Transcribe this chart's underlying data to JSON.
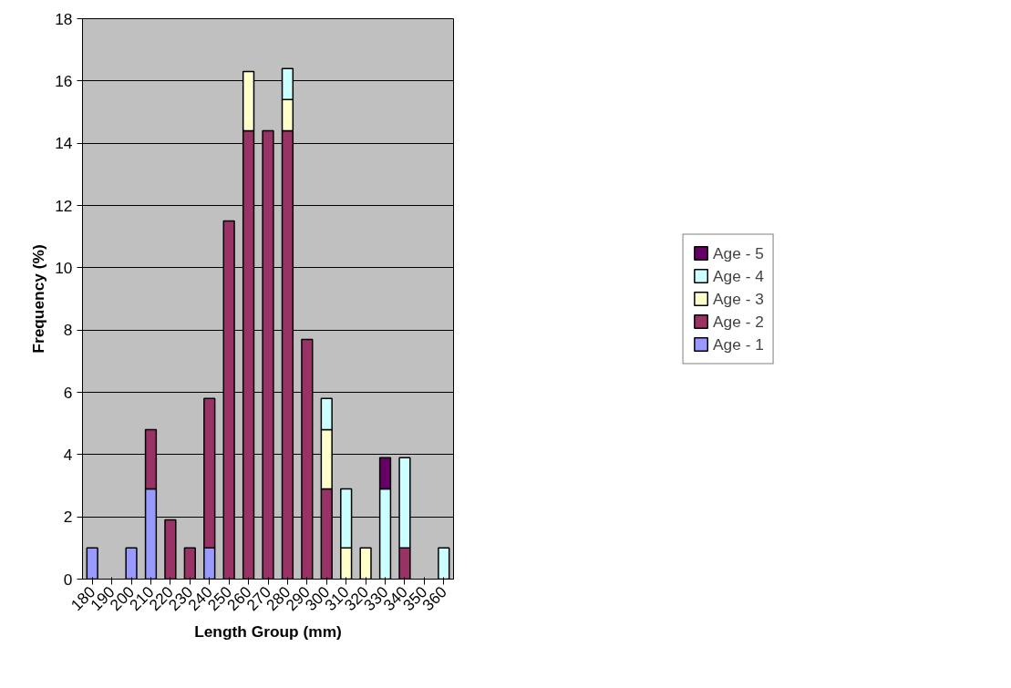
{
  "chart_data": {
    "type": "bar",
    "stacked": true,
    "xlabel": "Length Group (mm)",
    "ylabel": "Frequency (%)",
    "categories": [
      "180",
      "190",
      "200",
      "210",
      "220",
      "230",
      "240",
      "250",
      "260",
      "270",
      "280",
      "290",
      "300",
      "310",
      "320",
      "330",
      "340",
      "350",
      "360"
    ],
    "series": [
      {
        "name": "Age - 1",
        "color": "#9999ff",
        "values": [
          1,
          null,
          1,
          2.9,
          null,
          null,
          1,
          null,
          null,
          null,
          null,
          null,
          null,
          null,
          null,
          null,
          null,
          null,
          null
        ]
      },
      {
        "name": "Age - 2",
        "color": "#993366",
        "values": [
          null,
          null,
          null,
          1.9,
          1.9,
          1,
          4.8,
          11.5,
          14.4,
          14.4,
          14.4,
          7.7,
          2.9,
          null,
          null,
          null,
          1,
          null,
          null
        ]
      },
      {
        "name": "Age - 3",
        "color": "#ffffcc",
        "values": [
          null,
          null,
          null,
          null,
          null,
          null,
          null,
          null,
          1.9,
          null,
          1,
          null,
          1.9,
          1,
          1,
          null,
          null,
          null,
          null
        ]
      },
      {
        "name": "Age - 4",
        "color": "#ccffff",
        "values": [
          null,
          null,
          null,
          null,
          null,
          null,
          null,
          null,
          null,
          null,
          1,
          null,
          1,
          1.9,
          null,
          2.9,
          2.9,
          null,
          1
        ]
      },
      {
        "name": "Age - 5",
        "color": "#660066",
        "values": [
          null,
          null,
          null,
          null,
          null,
          null,
          null,
          null,
          null,
          null,
          null,
          null,
          null,
          null,
          null,
          1,
          null,
          null,
          null
        ]
      }
    ],
    "ylim": [
      0,
      18
    ],
    "yticks": [
      0,
      2,
      4,
      6,
      8,
      10,
      12,
      14,
      16,
      18
    ],
    "grid": "y",
    "legend": "right"
  }
}
